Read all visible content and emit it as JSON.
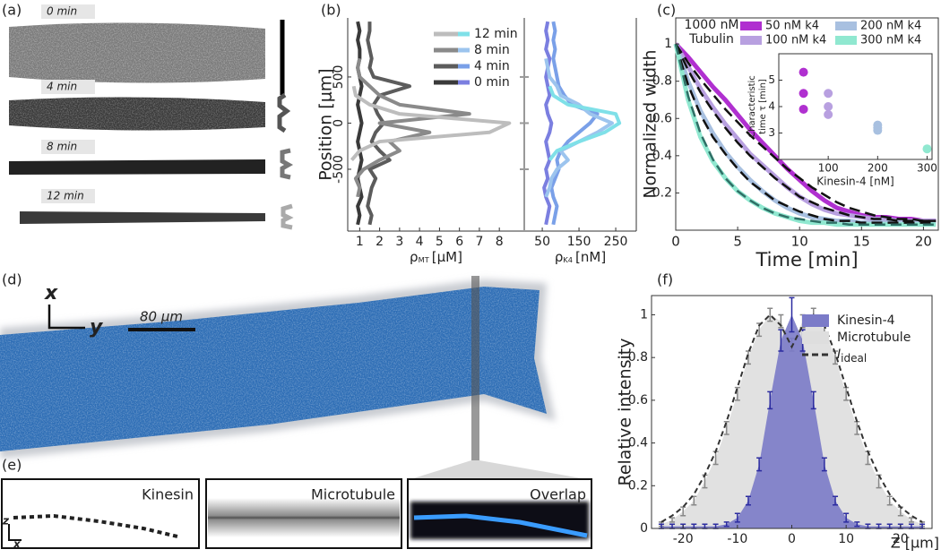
{
  "figure": {
    "panel_labels": [
      "(a)",
      "(b)",
      "(c)",
      "(d)",
      "(e)",
      "(f)"
    ],
    "a_times": [
      "0 min",
      "4 min",
      "8 min",
      "12 min"
    ],
    "d": {
      "axis_x": "x",
      "axis_y": "y",
      "scale_bar": "80 μm"
    },
    "e": {
      "titles": [
        "Kinesin",
        "Microtubule",
        "Overlap"
      ],
      "axis_z": "z",
      "axis_x": "x"
    }
  },
  "chart_data": [
    {
      "type": "profile",
      "y_label": "Position [μm]",
      "x_label": {
        "symbol": "ρ",
        "sub": "MT",
        "unit": "[μM]"
      },
      "xlim": [
        0.4,
        9.25
      ],
      "xticks": [
        1,
        2,
        3,
        4,
        5,
        6,
        7,
        8
      ],
      "ylim": [
        -1170,
        1140
      ],
      "yticks": [
        -500,
        0,
        500
      ],
      "positions": [
        -1100,
        -1000,
        -900,
        -800,
        -700,
        -600,
        -500,
        -400,
        -300,
        -200,
        -100,
        0,
        100,
        200,
        300,
        400,
        500,
        600,
        700,
        800,
        900,
        1000,
        1100
      ],
      "series": [
        {
          "name": "12 min",
          "color": "#bdbdbd",
          "values": [
            null,
            null,
            null,
            null,
            null,
            null,
            null,
            0.6,
            1.0,
            2.0,
            7.5,
            8.5,
            3.0,
            1.5,
            0.8,
            0.7,
            null,
            null,
            null,
            null,
            null,
            null,
            null
          ]
        },
        {
          "name": "8 min",
          "color": "#8a8a8a",
          "values": [
            null,
            null,
            null,
            0.9,
            1.0,
            0.8,
            1.2,
            2.0,
            3.0,
            2.5,
            4.5,
            2.0,
            6.5,
            3.0,
            2.0,
            1.5,
            1.0,
            0.9,
            1.0,
            null,
            null,
            null,
            null
          ]
        },
        {
          "name": "4 min",
          "color": "#5c5c5c",
          "values": [
            1.5,
            1.6,
            1.4,
            1.5,
            1.6,
            1.8,
            1.5,
            2.5,
            2.0,
            1.6,
            1.8,
            2.2,
            1.9,
            1.7,
            2.0,
            3.5,
            1.7,
            1.5,
            1.6,
            1.5,
            1.4,
            1.5,
            1.5
          ]
        },
        {
          "name": "0 min",
          "color": "#3a3a3a",
          "values": [
            0.9,
            1.0,
            0.9,
            1.1,
            1.0,
            0.9,
            1.0,
            1.1,
            1.0,
            0.9,
            1.0,
            1.1,
            1.0,
            0.9,
            1.0,
            1.1,
            1.0,
            0.9,
            1.0,
            1.0,
            0.9,
            1.0,
            0.9
          ]
        }
      ]
    },
    {
      "type": "profile",
      "x_label": {
        "symbol": "ρ",
        "sub": "K4",
        "unit": "[nM]"
      },
      "xlim": [
        1,
        306
      ],
      "xticks": [
        50,
        150,
        250
      ],
      "ylim": [
        -1170,
        1140
      ],
      "positions": [
        -1100,
        -1000,
        -900,
        -800,
        -700,
        -600,
        -500,
        -400,
        -300,
        -200,
        -100,
        0,
        100,
        200,
        300,
        400,
        500,
        600,
        700,
        800,
        900,
        1000,
        1100
      ],
      "series": [
        {
          "color": "#7fe0e8",
          "values": [
            null,
            null,
            null,
            null,
            null,
            null,
            null,
            70,
            90,
            150,
            220,
            260,
            250,
            120,
            80,
            70,
            null,
            null,
            null,
            null,
            null,
            null,
            null
          ]
        },
        {
          "color": "#9cc4ee",
          "values": [
            null,
            null,
            null,
            60,
            70,
            75,
            90,
            120,
            100,
            150,
            200,
            240,
            180,
            150,
            100,
            90,
            70,
            65,
            60,
            null,
            null,
            null,
            null
          ]
        },
        {
          "color": "#7aa0e8",
          "values": [
            80,
            85,
            90,
            80,
            75,
            85,
            95,
            90,
            100,
            120,
            150,
            180,
            200,
            130,
            110,
            95,
            90,
            85,
            80,
            85,
            80,
            85,
            80
          ]
        },
        {
          "color": "#7b7fe0",
          "values": [
            60,
            65,
            70,
            60,
            55,
            65,
            60,
            70,
            65,
            60,
            70,
            75,
            65,
            60,
            70,
            65,
            60,
            65,
            70,
            60,
            65,
            60,
            65
          ]
        }
      ]
    },
    {
      "type": "line",
      "annotation": [
        "1000 nM",
        "Tubulin"
      ],
      "x_label": "Time [min]",
      "y_label": "Normalized width",
      "xlim": [
        0,
        21.2
      ],
      "xticks": [
        0,
        5,
        10,
        15,
        20
      ],
      "ylim": [
        0,
        1.14
      ],
      "yticks": [
        0.2,
        0.4,
        0.6,
        0.8,
        1
      ],
      "x": [
        0,
        1,
        2,
        3,
        4,
        5,
        6,
        7,
        8,
        9,
        10,
        11,
        12,
        13,
        14,
        15,
        16,
        17,
        18,
        19,
        20,
        21
      ],
      "series": [
        {
          "name": "50 nM k4",
          "color": "#b030d0",
          "values": [
            1,
            0.93,
            0.85,
            0.77,
            0.7,
            0.62,
            0.54,
            0.47,
            0.4,
            0.33,
            0.27,
            0.21,
            0.16,
            0.12,
            0.1,
            0.08,
            0.07,
            0.07,
            0.06,
            0.06,
            0.05,
            0.05
          ]
        },
        {
          "name": "100 nM k4",
          "color": "#b8a0e0",
          "values": [
            1,
            0.88,
            0.76,
            0.66,
            0.57,
            0.49,
            0.41,
            0.35,
            0.29,
            0.23,
            0.18,
            0.14,
            0.11,
            0.09,
            0.08,
            0.07,
            0.06,
            0.06,
            0.05,
            0.05,
            0.05,
            0.05
          ]
        },
        {
          "name": "200 nM k4",
          "color": "#a8c0e0",
          "values": [
            1,
            0.8,
            0.64,
            0.52,
            0.42,
            0.34,
            0.27,
            0.21,
            0.16,
            0.12,
            0.09,
            0.07,
            0.06,
            0.05,
            0.05,
            0.04,
            0.04,
            0.04,
            0.04,
            0.04,
            0.04,
            0.04
          ]
        },
        {
          "name": "300 nM k4",
          "color": "#90e8d0",
          "values": [
            1,
            0.7,
            0.5,
            0.37,
            0.28,
            0.21,
            0.16,
            0.12,
            0.09,
            0.07,
            0.05,
            0.04,
            0.04,
            0.03,
            0.03,
            0.03,
            0.03,
            0.03,
            0.03,
            0.03,
            0.03,
            0.03
          ]
        }
      ],
      "fits": [
        {
          "color": "#111111",
          "values": [
            1,
            0.9,
            0.81,
            0.73,
            0.65,
            0.58,
            0.51,
            0.45,
            0.39,
            0.33,
            0.28,
            0.23,
            0.19,
            0.15,
            0.12,
            0.1,
            0.08,
            0.07,
            0.06,
            0.06,
            0.05,
            0.05
          ]
        },
        {
          "color": "#111111",
          "values": [
            1,
            0.86,
            0.74,
            0.64,
            0.55,
            0.47,
            0.4,
            0.34,
            0.28,
            0.23,
            0.18,
            0.15,
            0.12,
            0.1,
            0.08,
            0.07,
            0.06,
            0.06,
            0.05,
            0.05,
            0.05,
            0.05
          ]
        },
        {
          "color": "#111111",
          "values": [
            1,
            0.78,
            0.62,
            0.5,
            0.41,
            0.33,
            0.26,
            0.21,
            0.16,
            0.13,
            0.1,
            0.08,
            0.06,
            0.05,
            0.05,
            0.04,
            0.04,
            0.04,
            0.04,
            0.04,
            0.04,
            0.04
          ]
        },
        {
          "color": "#2f6f66",
          "values": [
            1,
            0.72,
            0.52,
            0.38,
            0.28,
            0.21,
            0.16,
            0.12,
            0.09,
            0.07,
            0.06,
            0.05,
            0.04,
            0.04,
            0.03,
            0.03,
            0.03,
            0.03,
            0.03,
            0.03,
            0.03,
            0.03
          ]
        }
      ]
    },
    {
      "type": "scatter",
      "y_label": [
        "Characteristic",
        "time τ [min]"
      ],
      "x_label": "Kinesin-4 [nM]",
      "xlim": [
        0,
        310
      ],
      "xticks": [
        100,
        200,
        300
      ],
      "ylim": [
        2.0,
        6.0
      ],
      "yticks": [
        3,
        4,
        5
      ],
      "series": [
        {
          "color": "#b030d0",
          "x": [
            50,
            50,
            50
          ],
          "y": [
            5.3,
            4.5,
            3.9
          ]
        },
        {
          "color": "#b8a0e0",
          "x": [
            100,
            100,
            100
          ],
          "y": [
            4.5,
            4.0,
            3.7
          ]
        },
        {
          "color": "#a8c0e0",
          "x": [
            200,
            200,
            200
          ],
          "y": [
            3.3,
            3.2,
            3.1
          ]
        },
        {
          "color": "#90e8d0",
          "x": [
            300
          ],
          "y": [
            2.4
          ]
        }
      ]
    },
    {
      "type": "profile-area",
      "y_label": "Relative intensity",
      "x_label": "Z [μm]",
      "xlim": [
        -25.8,
        25.8
      ],
      "xticks": [
        -20,
        -10,
        0,
        10,
        20
      ],
      "ylim": [
        0,
        1.09
      ],
      "yticks": [
        0,
        0.2,
        0.4,
        0.6,
        0.8,
        1
      ],
      "x": [
        -24,
        -22,
        -20,
        -18,
        -16,
        -14,
        -12,
        -10,
        -8,
        -6,
        -4,
        -2,
        0,
        2,
        4,
        6,
        8,
        10,
        12,
        14,
        16,
        18,
        20,
        22,
        24
      ],
      "series": [
        {
          "name": "Kinesin-4",
          "kind": "area",
          "color": "#7b7bc8",
          "error_color": "#2c2ca0",
          "values": [
            0.01,
            0.01,
            0.01,
            0.01,
            0.01,
            0.01,
            0.02,
            0.05,
            0.13,
            0.3,
            0.6,
            0.88,
            1.0,
            0.88,
            0.6,
            0.3,
            0.13,
            0.05,
            0.02,
            0.01,
            0.01,
            0.01,
            0.01,
            0.01,
            0.01
          ],
          "errors": [
            0.01,
            0.01,
            0.01,
            0.01,
            0.01,
            0.01,
            0.01,
            0.02,
            0.02,
            0.03,
            0.04,
            0.05,
            0.08,
            0.05,
            0.04,
            0.03,
            0.02,
            0.02,
            0.01,
            0.01,
            0.01,
            0.01,
            0.01,
            0.01,
            0.01
          ]
        },
        {
          "name": "Microtubule",
          "kind": "area",
          "color": "#dedede",
          "error_color": "#888888",
          "values": [
            0.02,
            0.04,
            0.08,
            0.13,
            0.22,
            0.33,
            0.47,
            0.63,
            0.8,
            0.93,
            1.0,
            0.97,
            0.86,
            0.97,
            1.0,
            0.93,
            0.8,
            0.63,
            0.47,
            0.33,
            0.22,
            0.13,
            0.08,
            0.04,
            0.02
          ],
          "errors": [
            0.01,
            0.01,
            0.02,
            0.02,
            0.03,
            0.03,
            0.03,
            0.03,
            0.03,
            0.03,
            0.03,
            0.03,
            0.03,
            0.03,
            0.03,
            0.03,
            0.03,
            0.03,
            0.03,
            0.03,
            0.03,
            0.02,
            0.02,
            0.01,
            0.01
          ]
        },
        {
          "name": "I",
          "name_sub": "ideal",
          "kind": "line",
          "color": "#333333",
          "values": [
            0.03,
            0.06,
            0.1,
            0.16,
            0.25,
            0.36,
            0.5,
            0.66,
            0.82,
            0.95,
            1.0,
            0.95,
            0.85,
            0.95,
            1.0,
            0.95,
            0.82,
            0.66,
            0.5,
            0.36,
            0.25,
            0.16,
            0.1,
            0.06,
            0.03
          ]
        }
      ]
    }
  ]
}
